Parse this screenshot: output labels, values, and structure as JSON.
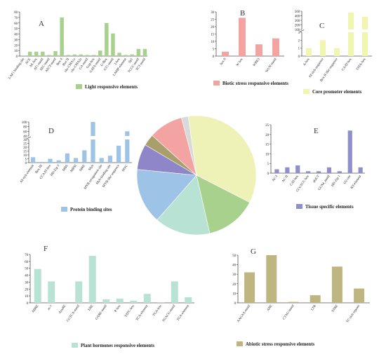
{
  "chart_data": [
    {
      "type": "bar",
      "panel_letter": "A",
      "legend": "Light responsive elements",
      "color": "#a9d18e",
      "ylim": [
        0,
        80
      ],
      "yticks": [
        0,
        10,
        20,
        30,
        40,
        50,
        60,
        70,
        80
      ],
      "categories": [
        "3-AF1 binding site",
        "ACE",
        "AE-box",
        "AT1-motif",
        "ATC-motif",
        "ATCT-motif",
        "Box 4",
        "Box II",
        "chs-CMA1a",
        "chs-CMA2a",
        "GA-motif",
        "Gap-box",
        "GATA-motif",
        "G-Box",
        "GT1-motif",
        "I-box",
        "LAMP-element",
        "Sp1",
        "TCCC-motif",
        "TCT-motif"
      ],
      "values": [
        1,
        8,
        8,
        8,
        2,
        9,
        70,
        2,
        3,
        3,
        2,
        2,
        10,
        60,
        41,
        6,
        2,
        3,
        13,
        13
      ]
    },
    {
      "type": "bar",
      "panel_letter": "B",
      "legend": "Biotic stress responsive elements",
      "color": "#f4a3a3",
      "ylim": [
        0,
        30
      ],
      "yticks": [
        0,
        5,
        10,
        15,
        20,
        25,
        30
      ],
      "categories": [
        "box S",
        "W box",
        "WRE3",
        "WUN-motif"
      ],
      "values": [
        3,
        26,
        8,
        12
      ]
    },
    {
      "type": "bar",
      "panel_letter": "C",
      "legend": "Core promoter elements",
      "color": "#f0f5b0",
      "broken_axis": true,
      "lower_range": [
        0,
        3
      ],
      "lower_ticks": [
        0,
        1,
        2,
        3
      ],
      "upper_range": [
        100,
        500
      ],
      "upper_ticks": [
        100,
        200,
        300,
        400,
        500
      ],
      "categories": [
        "A-box",
        "AT-rich sequence",
        "Box II-like sequence",
        "CAAT-box",
        "TATA-box"
      ],
      "values": [
        1,
        2,
        1,
        470,
        380
      ]
    },
    {
      "type": "bar",
      "panel_letter": "D",
      "legend": "Protein binding sites",
      "color": "#9dc3e6",
      "broken_axis": true,
      "lower_range": [
        0,
        30
      ],
      "lower_ticks": [
        0,
        5,
        10,
        15,
        20,
        25,
        30
      ],
      "upper_range": [
        40,
        100
      ],
      "upper_ticks": [
        40,
        60,
        80,
        100
      ],
      "categories": [
        "AT-rich element",
        "Box III",
        "CCAAT-box",
        "HD-Zip 3",
        "MBS",
        "MBSI",
        "MRE",
        "Myb",
        "MYB recognition site",
        "Myb-binding site",
        "MYB-like sequence",
        "MYC"
      ],
      "values": [
        7,
        1,
        5,
        3,
        12,
        6,
        16,
        100,
        6,
        9,
        22,
        60
      ]
    },
    {
      "type": "pie",
      "values": [
        30,
        12,
        13,
        13,
        6,
        2.7,
        8,
        1.6
      ],
      "colors": [
        "#eff2b7",
        "#a9d18e",
        "#b8e2d4",
        "#9dc3e6",
        "#8e86c9",
        "#a89f6b",
        "#f4a3a3",
        "#d9d9d9"
      ]
    },
    {
      "type": "bar",
      "panel_letter": "E",
      "legend": "Tissue specific elements",
      "color": "#8f8fce",
      "ylim": [
        0,
        25
      ],
      "yticks": [
        0,
        5,
        10,
        15,
        20,
        25
      ],
      "categories": [
        "AC-I",
        "AC-II",
        "CAT-box",
        "CCGTCC-box",
        "dOCT",
        "GCN4_motif",
        "HD-Zip 1",
        "O2-site",
        "RY-element"
      ],
      "values": [
        2,
        3,
        4,
        1,
        1,
        3,
        1,
        22,
        3
      ]
    },
    {
      "type": "bar",
      "panel_letter": "F",
      "legend": "Plant hormones responsive elements",
      "color": "#b8e2d4",
      "ylim": [
        0,
        70
      ],
      "yticks": [
        0,
        10,
        20,
        30,
        40,
        50,
        60,
        70
      ],
      "categories": [
        "ABRE",
        "as-1",
        "AuxRE",
        "CGTCA-motif",
        "ERE",
        "GARE-motif",
        "P-box",
        "TATC-box",
        "TCA-element",
        "TGA-box",
        "TGACG-motif",
        "TGA-element"
      ],
      "values": [
        49,
        31,
        0,
        31,
        68,
        5,
        6,
        3,
        13,
        1,
        31,
        8
      ]
    },
    {
      "type": "bar",
      "panel_letter": "G",
      "legend": "Abiotic stress responsive elements",
      "color": "#bfb580",
      "ylim": [
        0,
        50
      ],
      "yticks": [
        0,
        10,
        20,
        30,
        40,
        50
      ],
      "categories": [
        "AAGAA-motif",
        "ARE",
        "CTAG-motif",
        "LTR",
        "STRE",
        "TC-rich repeats"
      ],
      "values": [
        32,
        50,
        1,
        8,
        38,
        15
      ]
    }
  ]
}
